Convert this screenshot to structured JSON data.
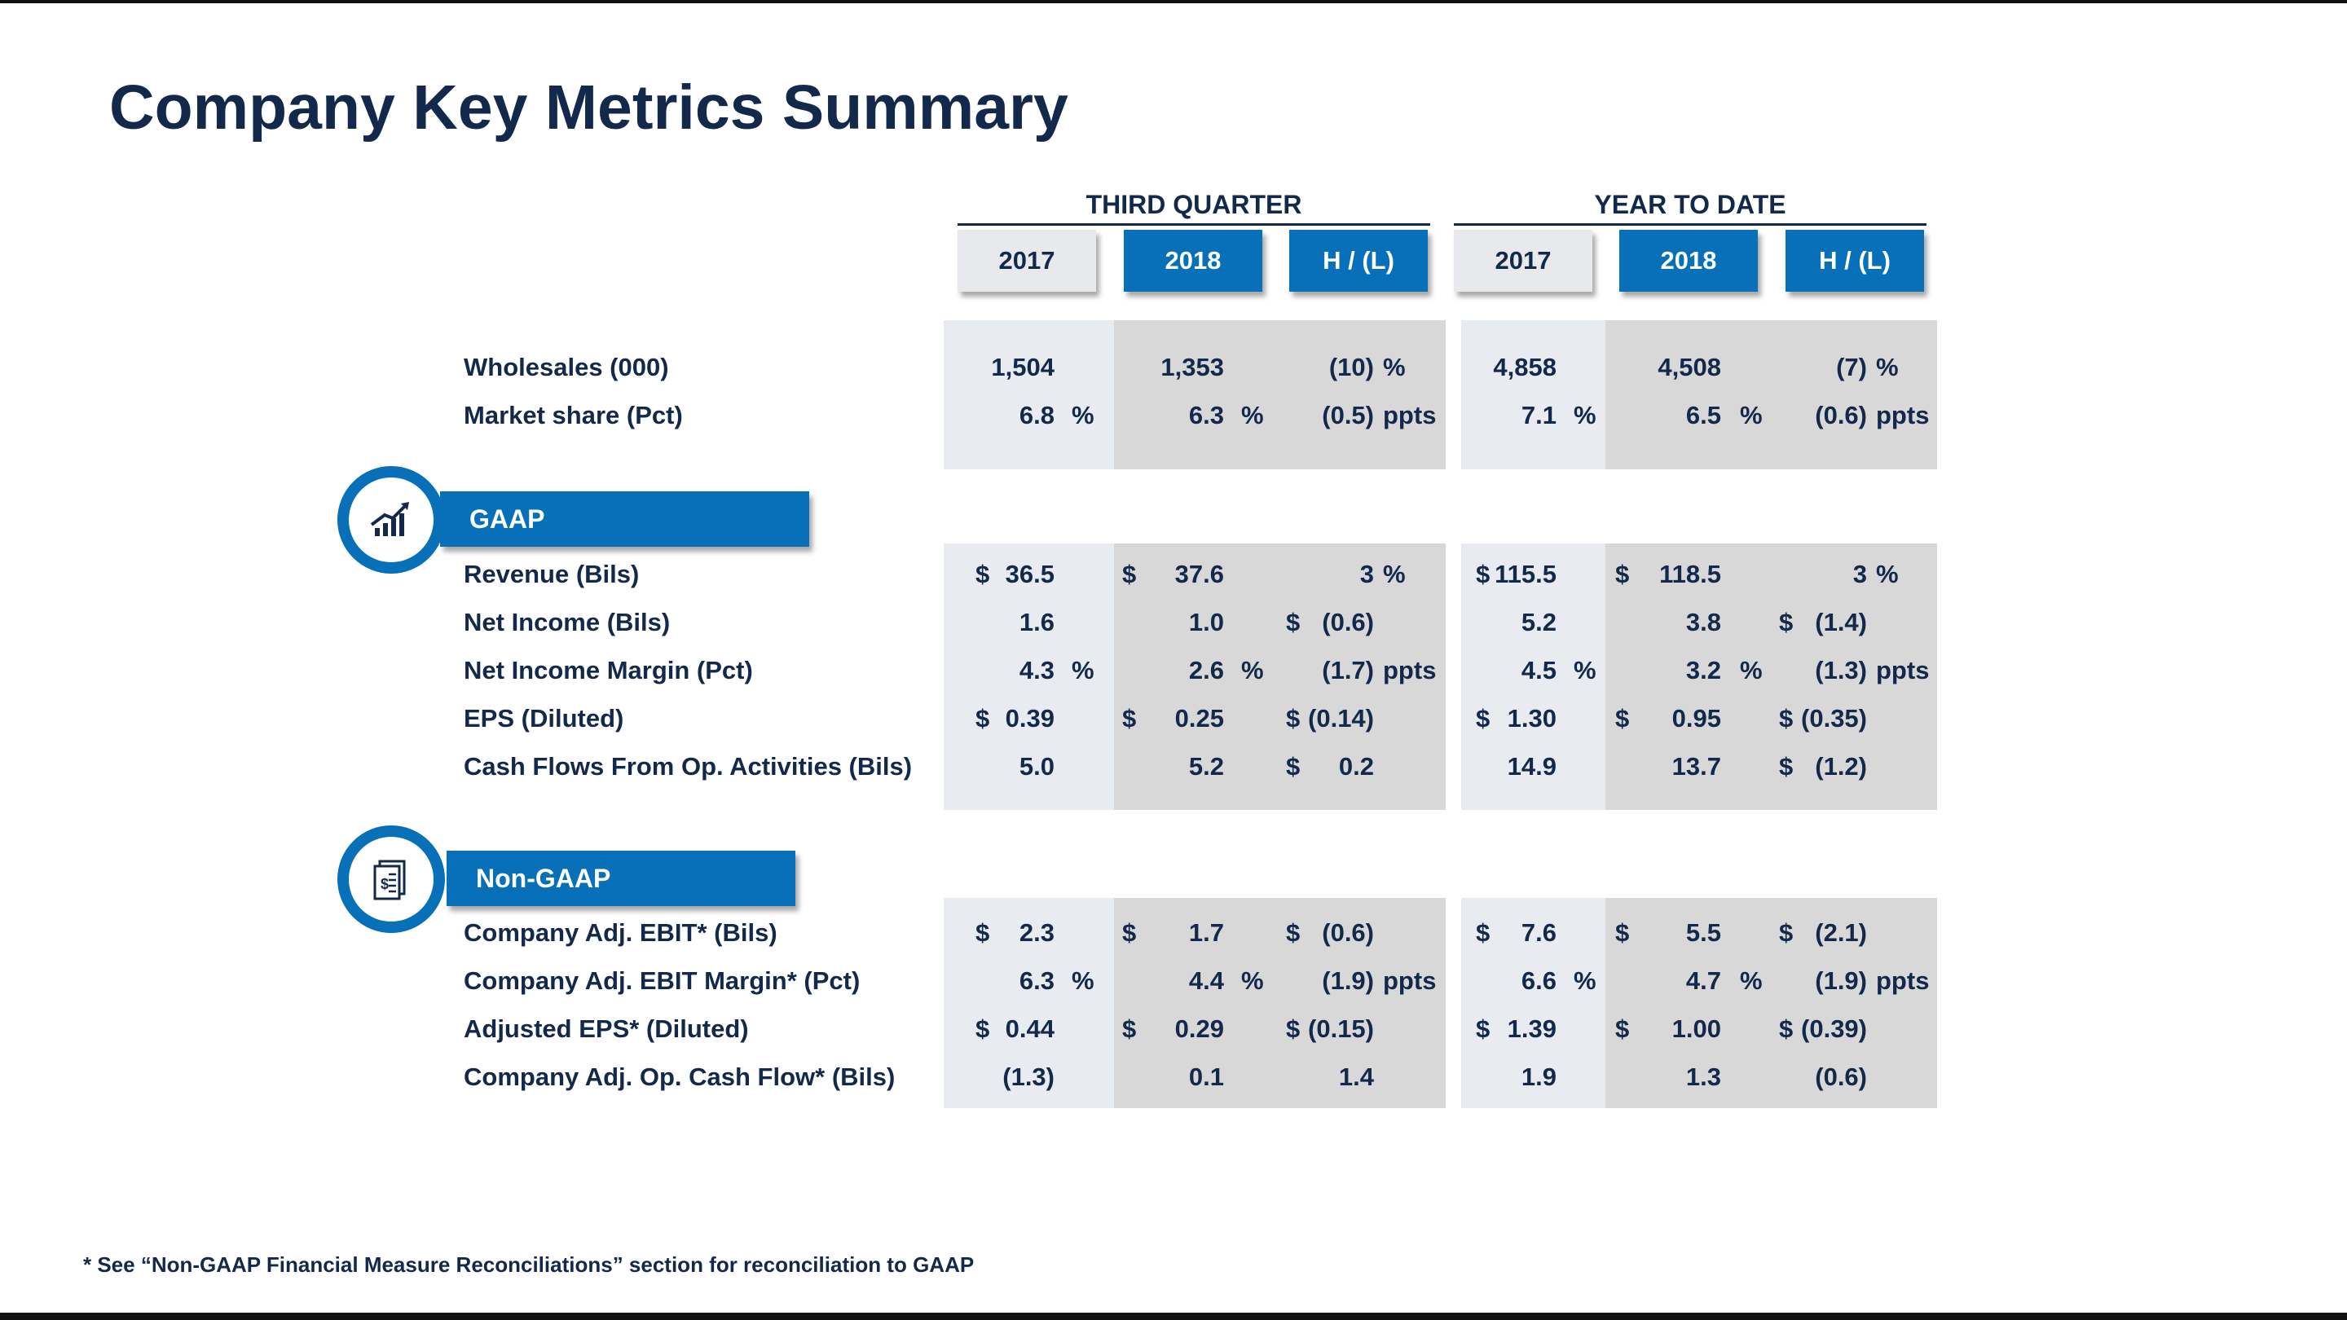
{
  "title": "Company Key Metrics Summary",
  "groups": {
    "third_quarter": "THIRD QUARTER",
    "year_to_date": "YEAR TO DATE"
  },
  "col_headers": {
    "y2017": "2017",
    "y2018": "2018",
    "hl": "H / (L)"
  },
  "sections": {
    "gaap": "GAAP",
    "non_gaap": "Non-GAAP"
  },
  "icons": {
    "gaap": "trend-chart-icon",
    "non_gaap": "financial-document-icon"
  },
  "colors": {
    "navy": "#13294b",
    "blue": "#0770b8",
    "light_bg": "#e8ebf0",
    "dark_bg": "#d8d8d8"
  },
  "rows": [
    {
      "label": "Wholesales (000)",
      "q17": "1,504",
      "q17u": "",
      "q18": "1,353",
      "q18u": "",
      "qhl_pre": "",
      "qhl": "(10)",
      "qhl_u": "%",
      "y17": "4,858",
      "y17u": "",
      "y18": "4,508",
      "y18u": "",
      "yhl_pre": "",
      "yhl": "(7)",
      "yhl_u": "%"
    },
    {
      "label": "Market share (Pct)",
      "q17": "6.8",
      "q17u": "%",
      "q18": "6.3",
      "q18u": "%",
      "qhl_pre": "",
      "qhl": "(0.5)",
      "qhl_u": "ppts",
      "y17": "7.1",
      "y17u": "%",
      "y18": "6.5",
      "y18u": "%",
      "yhl_pre": "",
      "yhl": "(0.6)",
      "yhl_u": "ppts"
    },
    {
      "label": "Revenue (Bils)",
      "q17_pre": "$",
      "q17": "36.5",
      "q17u": "",
      "q18_pre": "$",
      "q18": "37.6",
      "q18u": "",
      "qhl_pre": "",
      "qhl": "3",
      "qhl_u": "%",
      "y17_pre": "$",
      "y17": "115.5",
      "y17u": "",
      "y18_pre": "$",
      "y18": "118.5",
      "y18u": "",
      "yhl_pre": "",
      "yhl": "3",
      "yhl_u": "%"
    },
    {
      "label": "Net Income (Bils)",
      "q17": "1.6",
      "q17u": "",
      "q18": "1.0",
      "q18u": "",
      "qhl_pre": "$",
      "qhl": "(0.6)",
      "qhl_u": "",
      "y17": "5.2",
      "y17u": "",
      "y18": "3.8",
      "y18u": "",
      "yhl_pre": "$",
      "yhl": "(1.4)",
      "yhl_u": ""
    },
    {
      "label": "Net Income Margin (Pct)",
      "q17": "4.3",
      "q17u": "%",
      "q18": "2.6",
      "q18u": "%",
      "qhl_pre": "",
      "qhl": "(1.7)",
      "qhl_u": "ppts",
      "y17": "4.5",
      "y17u": "%",
      "y18": "3.2",
      "y18u": "%",
      "yhl_pre": "",
      "yhl": "(1.3)",
      "yhl_u": "ppts"
    },
    {
      "label": "EPS (Diluted)",
      "q17_pre": "$",
      "q17": "0.39",
      "q17u": "",
      "q18_pre": "$",
      "q18": "0.25",
      "q18u": "",
      "qhl_pre": "$",
      "qhl": "(0.14)",
      "qhl_u": "",
      "y17_pre": "$",
      "y17": "1.30",
      "y17u": "",
      "y18_pre": "$",
      "y18": "0.95",
      "y18u": "",
      "yhl_pre": "$",
      "yhl": "(0.35)",
      "yhl_u": ""
    },
    {
      "label": "Cash Flows From Op. Activities (Bils)",
      "q17": "5.0",
      "q17u": "",
      "q18": "5.2",
      "q18u": "",
      "qhl_pre": "$",
      "qhl": "0.2",
      "qhl_u": "",
      "y17": "14.9",
      "y17u": "",
      "y18": "13.7",
      "y18u": "",
      "yhl_pre": "$",
      "yhl": "(1.2)",
      "yhl_u": ""
    },
    {
      "label": "Company Adj. EBIT* (Bils)",
      "q17_pre": "$",
      "q17": "2.3",
      "q17u": "",
      "q18_pre": "$",
      "q18": "1.7",
      "q18u": "",
      "qhl_pre": "$",
      "qhl": "(0.6)",
      "qhl_u": "",
      "y17_pre": "$",
      "y17": "7.6",
      "y17u": "",
      "y18_pre": "$",
      "y18": "5.5",
      "y18u": "",
      "yhl_pre": "$",
      "yhl": "(2.1)",
      "yhl_u": ""
    },
    {
      "label": "Company Adj. EBIT Margin* (Pct)",
      "q17": "6.3",
      "q17u": "%",
      "q18": "4.4",
      "q18u": "%",
      "qhl_pre": "",
      "qhl": "(1.9)",
      "qhl_u": "ppts",
      "y17": "6.6",
      "y17u": "%",
      "y18": "4.7",
      "y18u": "%",
      "yhl_pre": "",
      "yhl": "(1.9)",
      "yhl_u": "ppts"
    },
    {
      "label": "Adjusted EPS* (Diluted)",
      "q17_pre": "$",
      "q17": "0.44",
      "q17u": "",
      "q18_pre": "$",
      "q18": "0.29",
      "q18u": "",
      "qhl_pre": "$",
      "qhl": "(0.15)",
      "qhl_u": "",
      "y17_pre": "$",
      "y17": "1.39",
      "y17u": "",
      "y18_pre": "$",
      "y18": "1.00",
      "y18u": "",
      "yhl_pre": "$",
      "yhl": "(0.39)",
      "yhl_u": ""
    },
    {
      "label": "Company Adj. Op. Cash Flow* (Bils)",
      "q17": "(1.3)",
      "q17u": "",
      "q18": "0.1",
      "q18u": "",
      "qhl_pre": "",
      "qhl": "1.4",
      "qhl_u": "",
      "y17": "1.9",
      "y17u": "",
      "y18": "1.3",
      "y18u": "",
      "yhl_pre": "",
      "yhl": "(0.6)",
      "yhl_u": ""
    }
  ],
  "footnote": "* See “Non-GAAP Financial Measure Reconciliations” section for reconciliation to GAAP"
}
